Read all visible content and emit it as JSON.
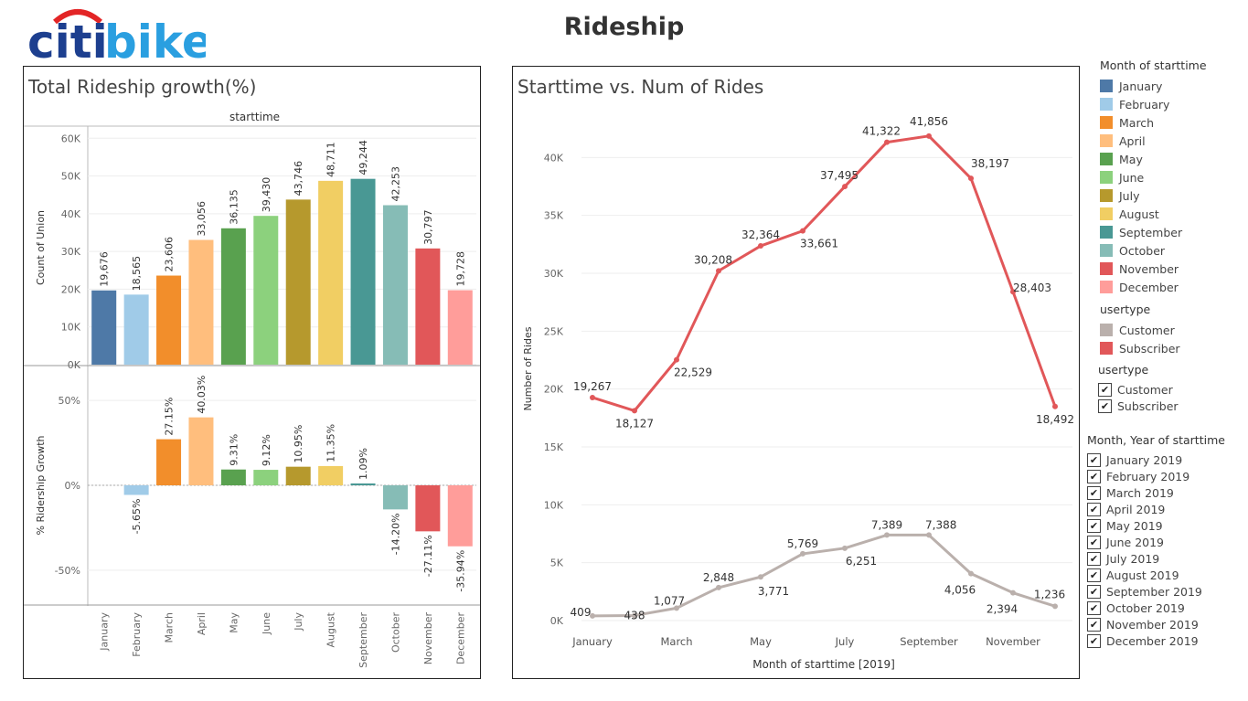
{
  "header": {
    "title": "Rideship",
    "logo_text_a": "citi",
    "logo_text_b": "bike"
  },
  "colors": {
    "months": [
      "#4e79a7",
      "#a0cbe8",
      "#f28e2b",
      "#ffbe7d",
      "#59a14f",
      "#8cd17d",
      "#b6992d",
      "#f1ce63",
      "#499894",
      "#86bcb6",
      "#e15759",
      "#ff9d9a"
    ],
    "customer": "#bab0ac",
    "subscriber": "#e15759",
    "logo_blue": "#1d3f8f",
    "logo_light": "#2a9fe0",
    "logo_red": "#e32526"
  },
  "chart_data": [
    {
      "type": "bar",
      "title": "Total Rideship growth(%)",
      "column_header": "starttime",
      "categories": [
        "January",
        "February",
        "March",
        "April",
        "May",
        "June",
        "July",
        "August",
        "September",
        "October",
        "November",
        "December"
      ],
      "panels": [
        {
          "ylabel": "Count of Union",
          "ylim": [
            0,
            62000
          ],
          "yticks": [
            0,
            10000,
            20000,
            30000,
            40000,
            50000,
            60000
          ],
          "ytick_labels": [
            "0K",
            "10K",
            "20K",
            "30K",
            "40K",
            "50K",
            "60K"
          ],
          "values": [
            19676,
            18565,
            23606,
            33056,
            36135,
            39430,
            43746,
            48711,
            49244,
            42253,
            30797,
            19728
          ],
          "labels": [
            "19,676",
            "18,565",
            "23,606",
            "33,056",
            "36,135",
            "39,430",
            "43,746",
            "48,711",
            "49,244",
            "42,253",
            "30,797",
            "19,728"
          ]
        },
        {
          "ylabel": "% Ridership Growth",
          "ylim": [
            -70,
            70
          ],
          "yticks": [
            50,
            0,
            -50
          ],
          "ytick_labels": [
            "50%",
            "0%",
            "-50%"
          ],
          "values": [
            null,
            -5.65,
            27.15,
            40.03,
            9.31,
            9.12,
            10.95,
            11.35,
            1.09,
            -14.2,
            -27.11,
            -35.94
          ],
          "labels": [
            "",
            "-5.65%",
            "27.15%",
            "40.03%",
            "9.31%",
            "9.12%",
            "10.95%",
            "11.35%",
            "1.09%",
            "-14.20%",
            "-27.11%",
            "-35.94%"
          ]
        }
      ]
    },
    {
      "type": "line",
      "title": "Starttime vs. Num of Rides",
      "xlabel": "Month of starttime [2019]",
      "ylabel": "Number of Rides",
      "x": [
        1,
        2,
        3,
        4,
        5,
        6,
        7,
        8,
        9,
        10,
        11,
        12
      ],
      "xticks": [
        1,
        3,
        5,
        7,
        9,
        11
      ],
      "xtick_labels": [
        "January",
        "March",
        "May",
        "July",
        "September",
        "November"
      ],
      "ylim": [
        0,
        43500
      ],
      "yticks": [
        0,
        5000,
        10000,
        15000,
        20000,
        25000,
        30000,
        35000,
        40000
      ],
      "ytick_labels": [
        "0K",
        "5K",
        "10K",
        "15K",
        "20K",
        "25K",
        "30K",
        "35K",
        "40K"
      ],
      "grid": true,
      "series": [
        {
          "name": "Subscriber",
          "values": [
            19267,
            18127,
            22529,
            30208,
            32364,
            33661,
            37495,
            41322,
            41856,
            38197,
            28403,
            18492
          ],
          "labels": [
            "19,267",
            "18,127",
            "22,529",
            "30,208",
            "32,364",
            "33,661",
            "37,495",
            "41,322",
            "41,856",
            "38,197",
            "28,403",
            "18,492"
          ]
        },
        {
          "name": "Customer",
          "values": [
            409,
            438,
            1077,
            2848,
            3771,
            5769,
            6251,
            7389,
            7388,
            4056,
            2394,
            1236
          ],
          "labels": [
            "409",
            "438",
            "1,077",
            "2,848",
            "3,771",
            "5,769",
            "6,251",
            "7,389",
            "7,388",
            "4,056",
            "2,394",
            "1,236"
          ]
        }
      ]
    }
  ],
  "legends": {
    "months_title": "Month of starttime",
    "months": [
      "January",
      "February",
      "March",
      "April",
      "May",
      "June",
      "July",
      "August",
      "September",
      "October",
      "November",
      "December"
    ],
    "usertype_title": "usertype",
    "usertype": [
      "Customer",
      "Subscriber"
    ],
    "usertype_filter_title": "usertype",
    "usertype_filter": [
      "Customer",
      "Subscriber"
    ],
    "month_year_filter_title": "Month, Year of starttime",
    "month_year_filter": [
      "January 2019",
      "February 2019",
      "March 2019",
      "April 2019",
      "May 2019",
      "June 2019",
      "July 2019",
      "August 2019",
      "September 2019",
      "October 2019",
      "November 2019",
      "December 2019"
    ],
    "check_glyph": "✔"
  }
}
